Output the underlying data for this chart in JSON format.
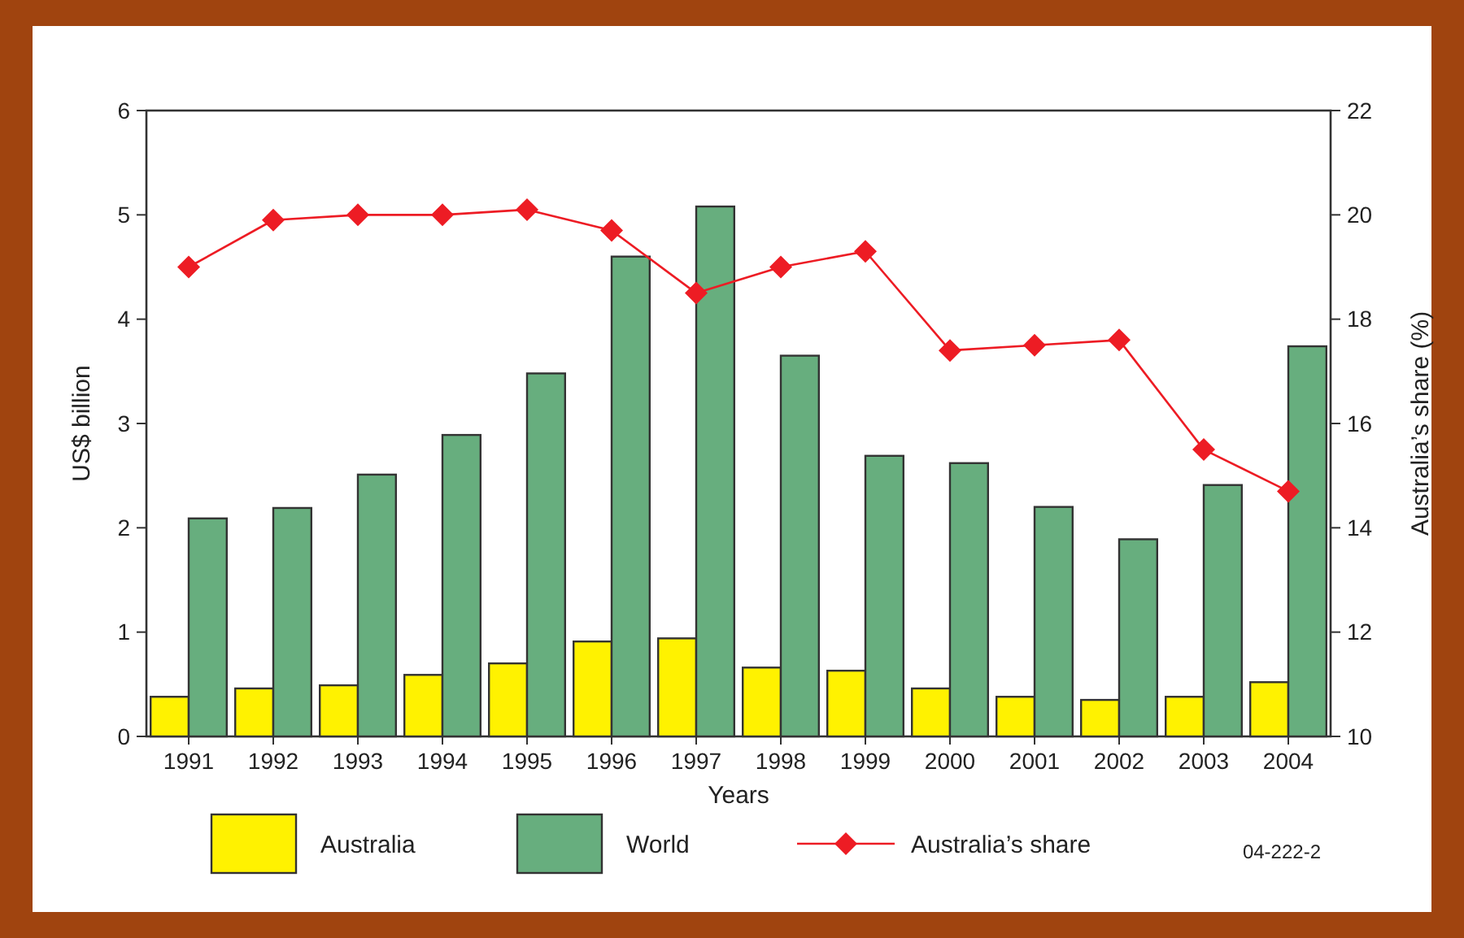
{
  "chart_data": {
    "type": "bar",
    "xlabel": "Years",
    "ylabel": "US$ billion",
    "y2label": "Australia’s share (%)",
    "categories": [
      "1991",
      "1992",
      "1993",
      "1994",
      "1995",
      "1996",
      "1997",
      "1998",
      "1999",
      "2000",
      "2001",
      "2002",
      "2003",
      "2004"
    ],
    "series": [
      {
        "name": "Australia",
        "color": "#fff200",
        "values": [
          0.38,
          0.46,
          0.49,
          0.59,
          0.7,
          0.91,
          0.94,
          0.66,
          0.63,
          0.46,
          0.38,
          0.35,
          0.38,
          0.52
        ]
      },
      {
        "name": "World",
        "color": "#67ae7e",
        "values": [
          2.09,
          2.19,
          2.51,
          2.89,
          3.48,
          4.6,
          5.08,
          3.65,
          2.69,
          2.62,
          2.2,
          1.89,
          2.41,
          3.74
        ]
      },
      {
        "name": "Australia’s share",
        "type": "line",
        "axis": "y2",
        "color": "#ed1c24",
        "marker": "diamond",
        "values": [
          19.0,
          19.9,
          20.0,
          20.0,
          20.1,
          19.7,
          18.5,
          19.0,
          19.3,
          17.4,
          17.5,
          17.6,
          15.5,
          14.7
        ]
      }
    ],
    "ylim": [
      0,
      6
    ],
    "yticks": [
      0,
      1,
      2,
      3,
      4,
      5,
      6
    ],
    "y2lim": [
      10,
      22
    ],
    "y2ticks": [
      10,
      12,
      14,
      16,
      18,
      20,
      22
    ],
    "grid": false,
    "legend": "bottom",
    "annotations": [
      "04-222-2"
    ]
  }
}
